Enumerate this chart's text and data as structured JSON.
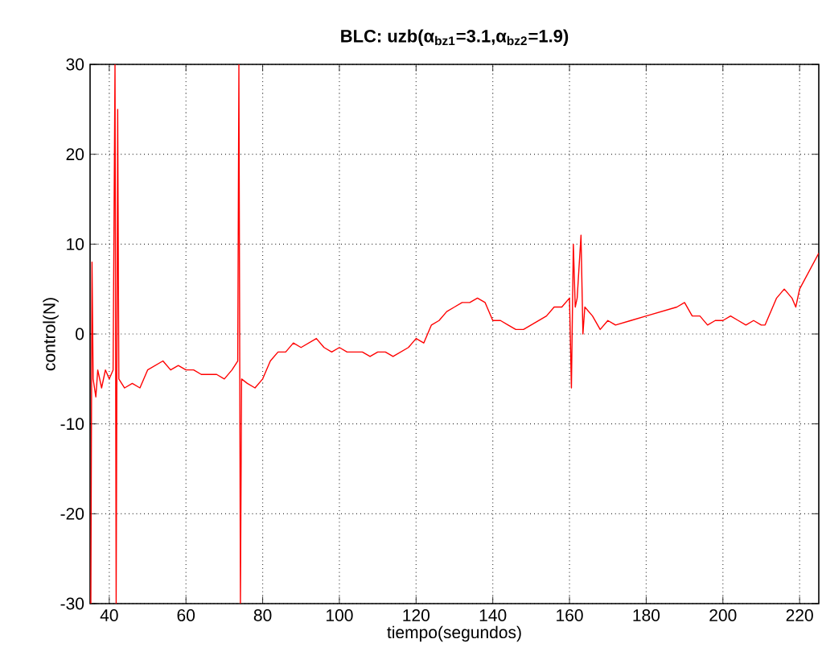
{
  "chart_data": {
    "type": "line",
    "title": "BLC: uzb(α$_{bz1}$=3.1,α$_{bz2}$=1.9)",
    "xlabel": "tiempo(segundos)",
    "ylabel": "control(N)",
    "xlim": [
      35,
      225
    ],
    "ylim": [
      -30,
      30
    ],
    "xticks": [
      40,
      60,
      80,
      100,
      120,
      140,
      160,
      180,
      200,
      220
    ],
    "yticks": [
      -30,
      -20,
      -10,
      0,
      10,
      20,
      30
    ],
    "grid": true,
    "line_style": "solid",
    "x": [
      35.2,
      35.5,
      35.8,
      36.5,
      37,
      38,
      39,
      40,
      41,
      41.5,
      41.8,
      42.2,
      42.5,
      44,
      46,
      48,
      50,
      52,
      54,
      56,
      58,
      60,
      62,
      64,
      66,
      68,
      70,
      72,
      73.5,
      73.8,
      74.2,
      74.5,
      76,
      78,
      80,
      82,
      84,
      86,
      88,
      90,
      92,
      94,
      96,
      98,
      100,
      102,
      104,
      106,
      108,
      110,
      112,
      114,
      116,
      118,
      120,
      122,
      124,
      126,
      128,
      130,
      132,
      134,
      136,
      138,
      140,
      142,
      144,
      146,
      148,
      150,
      152,
      154,
      156,
      158,
      160,
      160.5,
      161,
      161.5,
      162,
      163,
      163.5,
      164,
      166,
      168,
      170,
      172,
      176,
      180,
      184,
      188,
      190,
      192,
      194,
      196,
      198,
      200,
      202,
      204,
      206,
      208,
      210,
      211,
      212,
      214,
      216,
      218,
      219,
      220,
      225
    ],
    "series": [
      {
        "color": "#ff0000",
        "values": [
          -30,
          8,
          -5,
          -7,
          -4,
          -6,
          -4,
          -5,
          -4,
          30,
          -30,
          25,
          -5,
          -6,
          -5.5,
          -6,
          -4,
          -3.5,
          -3,
          -4,
          -3.5,
          -4,
          -4,
          -4.5,
          -4.5,
          -4.5,
          -5,
          -4,
          -3,
          30,
          -30,
          -5,
          -5.5,
          -6,
          -5,
          -3,
          -2,
          -2,
          -1,
          -1.5,
          -1,
          -0.5,
          -1.5,
          -2,
          -1.5,
          -2,
          -2,
          -2,
          -2.5,
          -2,
          -2,
          -2.5,
          -2,
          -1.5,
          -0.5,
          -1,
          1,
          1.5,
          2.5,
          3,
          3.5,
          3.5,
          4,
          3.5,
          1.5,
          1.5,
          1,
          0.5,
          0.5,
          1,
          1.5,
          2,
          3,
          3,
          4,
          -6,
          10,
          3,
          4,
          11,
          0,
          3,
          2,
          0.5,
          1.5,
          1,
          1.5,
          2,
          2.5,
          3,
          3.5,
          2,
          2,
          1,
          1.5,
          1.5,
          2,
          1.5,
          1,
          1.5,
          1,
          1,
          2,
          4,
          5,
          4,
          3,
          5,
          9
        ]
      }
    ]
  }
}
